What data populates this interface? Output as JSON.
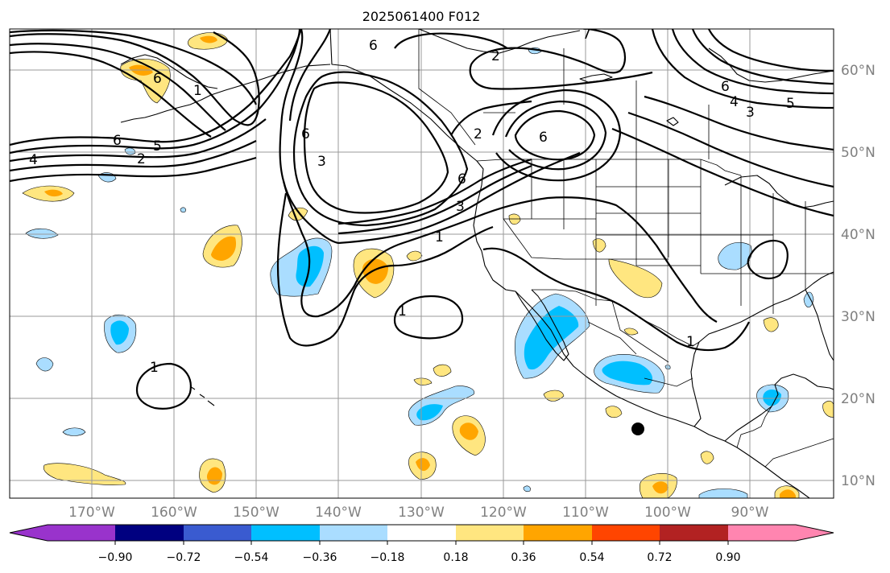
{
  "title": "2025061400 F012",
  "longitude_labels": [
    "170°W",
    "160°W",
    "150°W",
    "140°W",
    "130°W",
    "120°W",
    "110°W",
    "100°W",
    "90°W"
  ],
  "latitude_labels": [
    "60°N",
    "50°N",
    "40°N",
    "30°N",
    "20°N",
    "10°N"
  ],
  "colorbar": {
    "colors": [
      "#9933cc",
      "#000080",
      "#3a5bd0",
      "#00bfff",
      "#aaddff",
      "#ffffff",
      "#ffe680",
      "#ffa500",
      "#ff4500",
      "#b22222",
      "#ff85b0"
    ],
    "tick_labels": [
      "−0.90",
      "−0.72",
      "−0.54",
      "−0.36",
      "−0.18",
      "0.18",
      "0.36",
      "0.54",
      "0.72",
      "0.90"
    ]
  },
  "contour_labels": [
    "6",
    "6",
    "2",
    "6",
    "5",
    "2",
    "4",
    "6",
    "3",
    "6",
    "3",
    "1",
    "1",
    "2",
    "6",
    "6",
    "4",
    "3",
    "5",
    "1",
    "1",
    "1",
    "7"
  ],
  "marker": "storm-center-dot"
}
